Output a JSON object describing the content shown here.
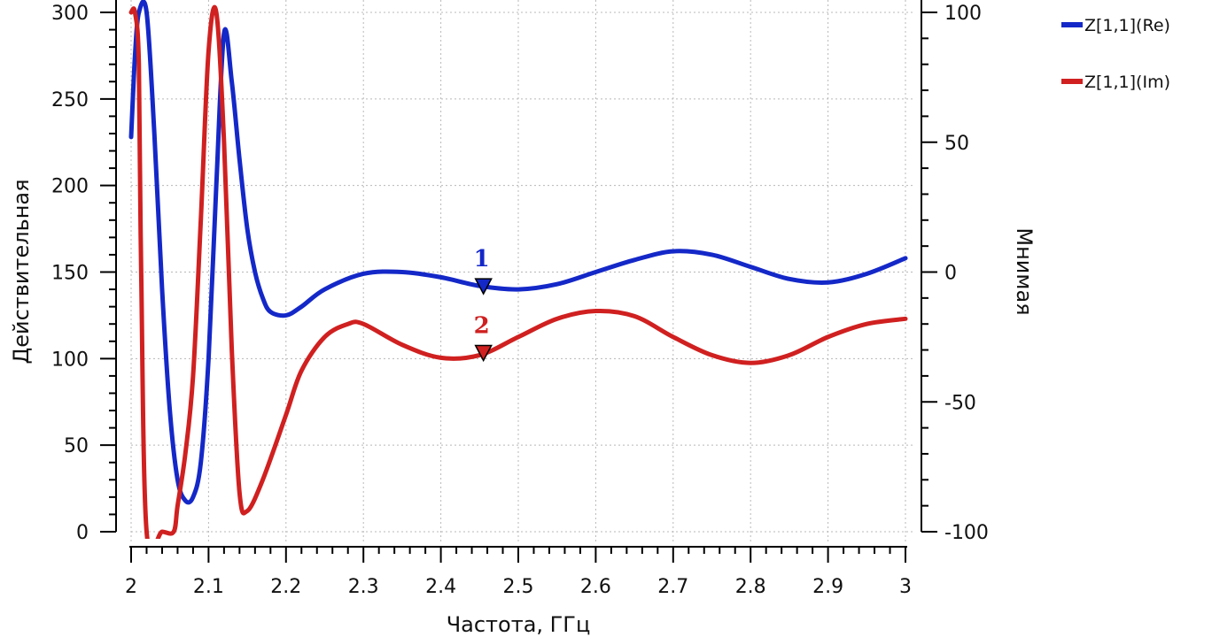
{
  "chart_data": {
    "type": "line",
    "xlabel": "Частота, ГГц",
    "ylabel": "Действительная",
    "y2label": "Мнимая",
    "xlim": [
      2,
      3
    ],
    "ylim": [
      0,
      300
    ],
    "y2lim": [
      -100,
      100
    ],
    "xticks": [
      "2",
      "2.1",
      "2.2",
      "2.3",
      "2.4",
      "2.5",
      "2.6",
      "2.7",
      "2.8",
      "2.9",
      "3"
    ],
    "yticks": [
      "0",
      "50",
      "100",
      "150",
      "200",
      "250",
      "300"
    ],
    "y2ticks": [
      "-100",
      "-50",
      "0",
      "50",
      "100"
    ],
    "grid": true,
    "legend_position": "top-right",
    "series": [
      {
        "name": "Z[1,1](Re)",
        "color": "#1428c8",
        "axis": "left",
        "x": [
          2.0,
          2.005,
          2.01,
          2.02,
          2.03,
          2.04,
          2.05,
          2.06,
          2.07,
          2.08,
          2.09,
          2.1,
          2.11,
          2.12,
          2.13,
          2.14,
          2.15,
          2.16,
          2.17,
          2.18,
          2.2,
          2.22,
          2.25,
          2.3,
          2.35,
          2.4,
          2.45,
          2.5,
          2.55,
          2.6,
          2.65,
          2.7,
          2.75,
          2.8,
          2.85,
          2.9,
          2.95,
          3.0
        ],
        "y": [
          228,
          275,
          300,
          300,
          230,
          140,
          70,
          30,
          18,
          20,
          40,
          100,
          200,
          288,
          260,
          215,
          175,
          150,
          135,
          127,
          125,
          130,
          140,
          149,
          150,
          147,
          142,
          140,
          143,
          150,
          157,
          162,
          160,
          153,
          146,
          144,
          149,
          158
        ]
      },
      {
        "name": "Z[1,1](Im)",
        "color": "#d02020",
        "axis": "right",
        "x": [
          2.0,
          2.005,
          2.01,
          2.013,
          2.02,
          2.04,
          2.055,
          2.06,
          2.07,
          2.08,
          2.09,
          2.1,
          2.11,
          2.12,
          2.13,
          2.14,
          2.15,
          2.17,
          2.2,
          2.22,
          2.25,
          2.28,
          2.3,
          2.35,
          2.4,
          2.45,
          2.5,
          2.55,
          2.6,
          2.65,
          2.7,
          2.75,
          2.8,
          2.85,
          2.9,
          2.95,
          3.0
        ],
        "y": [
          100,
          100,
          80,
          0,
          -100,
          -100,
          -100,
          -90,
          -70,
          -40,
          20,
          85,
          100,
          50,
          -30,
          -85,
          -92,
          -80,
          -55,
          -38,
          -25,
          -20,
          -20,
          -28,
          -33,
          -32,
          -25,
          -18,
          -15,
          -17,
          -25,
          -32,
          -35,
          -32,
          -25,
          -20,
          -18
        ]
      }
    ],
    "markers": [
      {
        "label": "1",
        "x": 2.455,
        "y": 142,
        "axis": "left",
        "color": "#1428c8"
      },
      {
        "label": "2",
        "x": 2.455,
        "y": -31,
        "axis": "right",
        "color": "#d02020"
      }
    ]
  }
}
